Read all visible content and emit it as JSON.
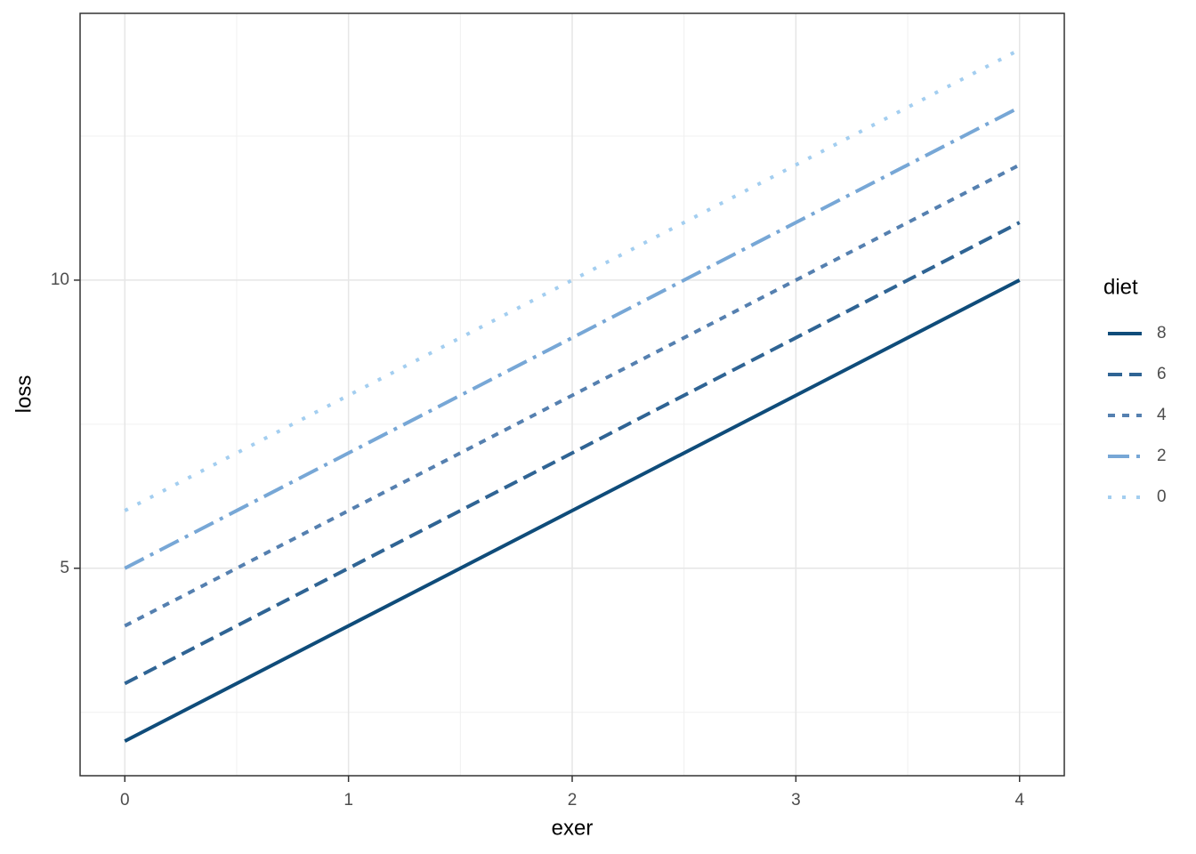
{
  "chart_data": {
    "type": "line",
    "x_label": "exer",
    "y_label": "loss",
    "legend_title": "diet",
    "x": [
      0,
      1,
      2,
      3,
      4
    ],
    "series": [
      {
        "name": "8",
        "color": "#0f4c7a",
        "dash": "none",
        "values": [
          2,
          4,
          6,
          8,
          10
        ]
      },
      {
        "name": "6",
        "color": "#2f6494",
        "dash": "16 8",
        "values": [
          3,
          5,
          7,
          9,
          11
        ]
      },
      {
        "name": "4",
        "color": "#5580b0",
        "dash": "8 8",
        "values": [
          4,
          6,
          8,
          10,
          12
        ]
      },
      {
        "name": "2",
        "color": "#77a7d6",
        "dash": "24 8 4 8",
        "values": [
          5,
          7,
          9,
          11,
          13
        ]
      },
      {
        "name": "0",
        "color": "#a3cef0",
        "dash": "4 12",
        "values": [
          6,
          8,
          10,
          12,
          14
        ]
      }
    ],
    "xlim": [
      -0.2,
      4.2
    ],
    "ylim": [
      1.4,
      14.63
    ],
    "xticks": [
      0,
      1,
      2,
      3,
      4
    ],
    "yticks": [
      5,
      10
    ],
    "xminor": [
      0.5,
      1.5,
      2.5,
      3.5
    ],
    "yminor": [
      2.5,
      7.5,
      12.5
    ],
    "grid": true,
    "legend_position": "right"
  }
}
